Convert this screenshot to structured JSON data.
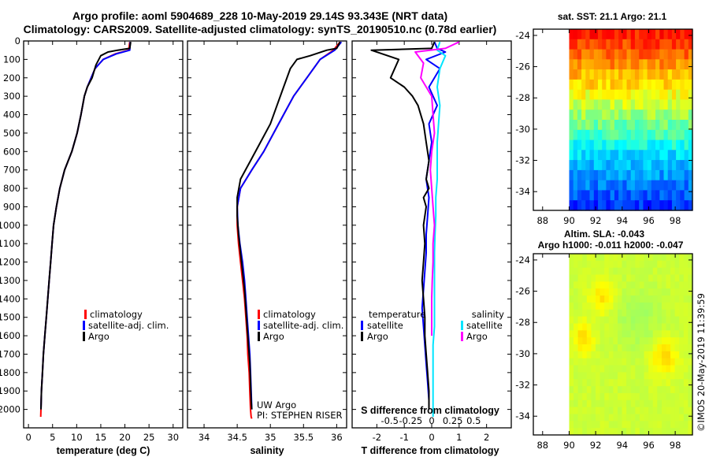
{
  "title": {
    "line1": "Argo profile: aoml 5904689_228 10-May-2019 29.14S 93.343E (NRT data)",
    "line2": "Climatology: CARS2009. Satellite-adjusted climatology: synTS_20190510.nc (0.78d earlier)"
  },
  "colors": {
    "climatology": "#ff0000",
    "satellite": "#0000ff",
    "argo": "#000000",
    "salinity_satellite": "#00e5ff",
    "salinity_argo": "#ff00ff"
  },
  "chart_data": [
    {
      "type": "line",
      "name": "temperature-profile",
      "xlabel": "temperature (deg C)",
      "ylabel": "",
      "xlim": [
        -1,
        32
      ],
      "ylim": [
        2100,
        0
      ],
      "xticks": [
        "0",
        "5",
        "10",
        "15",
        "20",
        "25",
        "30"
      ],
      "xtick_values": [
        0,
        5,
        10,
        15,
        20,
        25,
        30
      ],
      "yticks": [
        "0",
        "100",
        "200",
        "300",
        "400",
        "500",
        "600",
        "700",
        "800",
        "900",
        "1000",
        "1100",
        "1200",
        "1300",
        "1400",
        "1500",
        "1600",
        "1700",
        "1800",
        "1900",
        "2000"
      ],
      "ytick_values": [
        0,
        100,
        200,
        300,
        400,
        500,
        600,
        700,
        800,
        900,
        1000,
        1100,
        1200,
        1300,
        1400,
        1500,
        1600,
        1700,
        1800,
        1900,
        2000
      ],
      "legend": [
        "climatology",
        "satellite-adj. clim.",
        "Argo"
      ],
      "series": [
        {
          "name": "climatology",
          "color": "#ff0000",
          "x": [
            21.0,
            20.8,
            18.0,
            15.5,
            13.8,
            13.0,
            12.2,
            11.6,
            10.9,
            10.1,
            9.0,
            7.5,
            6.5,
            5.8,
            5.2,
            4.9,
            4.6,
            4.3,
            4.0,
            3.7,
            3.4,
            3.1,
            2.9,
            2.7,
            2.55
          ],
          "y": [
            5,
            50,
            70,
            100,
            150,
            200,
            250,
            300,
            400,
            500,
            600,
            700,
            800,
            900,
            1000,
            1100,
            1200,
            1300,
            1400,
            1500,
            1600,
            1700,
            1800,
            1900,
            2040
          ]
        },
        {
          "name": "satellite-adj. clim.",
          "color": "#0000ff",
          "x": [
            21.1,
            21.0,
            18.2,
            15.5,
            13.8,
            13.0,
            12.2,
            11.6,
            10.9,
            10.1,
            9.0,
            7.5,
            6.5,
            5.8,
            5.2,
            4.9,
            4.6,
            4.3,
            4.0,
            3.7,
            3.4,
            3.1,
            2.9,
            2.7,
            2.6
          ],
          "y": [
            5,
            50,
            70,
            100,
            150,
            200,
            250,
            300,
            400,
            500,
            600,
            700,
            800,
            900,
            1000,
            1100,
            1200,
            1300,
            1400,
            1500,
            1600,
            1700,
            1800,
            1900,
            2000
          ]
        },
        {
          "name": "Argo",
          "color": "#000000",
          "x": [
            21.2,
            21.0,
            19.8,
            18.5,
            16.5,
            15.0,
            14.0,
            13.2,
            12.2,
            11.6,
            10.9,
            10.1,
            9.0,
            7.5,
            6.5,
            5.8,
            5.2,
            4.9,
            4.6,
            4.3,
            4.0,
            3.7,
            3.4,
            3.1,
            2.9,
            2.7,
            2.6
          ],
          "y": [
            5,
            40,
            45,
            50,
            60,
            80,
            130,
            200,
            250,
            300,
            400,
            500,
            600,
            700,
            800,
            900,
            1000,
            1100,
            1200,
            1300,
            1400,
            1500,
            1600,
            1700,
            1800,
            1900,
            2000
          ]
        }
      ]
    },
    {
      "type": "line",
      "name": "salinity-profile",
      "xlabel": "salinity",
      "ylabel": "",
      "xlim": [
        33.75,
        36.15
      ],
      "ylim": [
        2100,
        0
      ],
      "xticks": [
        "34",
        "34.5",
        "35",
        "35.5",
        "36"
      ],
      "xtick_values": [
        34,
        34.5,
        35,
        35.5,
        36
      ],
      "legend": [
        "climatology",
        "satellite-adj. clim.",
        "Argo"
      ],
      "annotation": [
        "UW Argo",
        "PI: STEPHEN RISER"
      ],
      "series": [
        {
          "name": "climatology",
          "color": "#ff0000",
          "x": [
            36.05,
            35.95,
            35.75,
            35.55,
            35.35,
            35.2,
            35.05,
            34.9,
            34.72,
            34.55,
            34.5,
            34.5,
            34.52,
            34.55,
            34.58,
            34.61,
            34.63,
            34.65,
            34.66,
            34.68,
            34.69,
            34.7,
            34.71,
            34.72
          ],
          "y": [
            5,
            50,
            100,
            200,
            300,
            400,
            500,
            600,
            700,
            800,
            900,
            1000,
            1100,
            1200,
            1300,
            1400,
            1500,
            1600,
            1700,
            1800,
            1900,
            2000,
            2040,
            2050
          ]
        },
        {
          "name": "satellite-adj. clim.",
          "color": "#0000ff",
          "x": [
            36.07,
            35.97,
            35.75,
            35.55,
            35.35,
            35.2,
            35.05,
            34.9,
            34.72,
            34.55,
            34.5,
            34.51,
            34.54,
            34.58,
            34.61,
            34.63,
            34.65,
            34.67,
            34.69,
            34.7,
            34.71,
            34.72
          ],
          "y": [
            5,
            50,
            100,
            200,
            300,
            400,
            500,
            600,
            700,
            800,
            900,
            1000,
            1100,
            1200,
            1300,
            1400,
            1500,
            1600,
            1700,
            1800,
            1900,
            2000
          ]
        },
        {
          "name": "Argo",
          "color": "#000000",
          "x": [
            36.05,
            36.0,
            35.85,
            35.6,
            35.4,
            35.3,
            35.2,
            35.1,
            35.0,
            34.85,
            34.7,
            34.55,
            34.5,
            34.5,
            34.52,
            34.55,
            34.58,
            34.61,
            34.63,
            34.65,
            34.67,
            34.69,
            34.7,
            34.71,
            34.72
          ],
          "y": [
            5,
            40,
            50,
            80,
            100,
            150,
            250,
            350,
            450,
            550,
            650,
            750,
            850,
            950,
            1050,
            1150,
            1250,
            1350,
            1450,
            1550,
            1650,
            1750,
            1850,
            1950,
            2000
          ]
        }
      ]
    },
    {
      "type": "line",
      "name": "difference-profile",
      "xlabel": "T difference from climatology",
      "xlabel2": "S difference from climatology",
      "xlim": [
        -2.9,
        2.9
      ],
      "ylim": [
        2100,
        0
      ],
      "xticks": [
        "-2",
        "-1",
        "0",
        "1",
        "2"
      ],
      "xtick_values": [
        -2,
        -1,
        0,
        1,
        2
      ],
      "xticks2": [
        "-0.5",
        "-0.25",
        "0",
        "0.25",
        "0.5"
      ],
      "xtick2_values": [
        -0.5,
        -0.25,
        0,
        0.25,
        0.5
      ],
      "legend_temperature_title": "temperature",
      "legend_salinity_title": "salinity",
      "legend_temperature": [
        "satellite",
        "Argo"
      ],
      "legend_salinity": [
        "satellite",
        "Argo"
      ],
      "series": [
        {
          "name": "T satellite",
          "color": "#0000ff",
          "x": [
            0.1,
            0.2,
            0.5,
            -0.2,
            0.3,
            -0.1,
            0.2,
            -0.1,
            0.0,
            -0.1,
            -0.2,
            -0.1,
            -0.15,
            -0.2,
            -0.2,
            -0.25,
            -0.3,
            -0.35,
            -0.3,
            -0.25,
            -0.2,
            -0.15,
            -0.1,
            -0.1
          ],
          "y": [
            5,
            40,
            60,
            100,
            150,
            250,
            350,
            450,
            550,
            650,
            750,
            850,
            950,
            1050,
            1150,
            1250,
            1350,
            1450,
            1550,
            1650,
            1750,
            1850,
            1950,
            2000
          ]
        },
        {
          "name": "T Argo",
          "color": "#000000",
          "x": [
            0.1,
            0.0,
            -2.2,
            -1.2,
            -1.5,
            -1.0,
            -0.7,
            -0.5,
            -0.3,
            -0.2,
            -0.1,
            -0.2,
            -0.1,
            -0.3,
            -0.2,
            -0.3,
            -0.25,
            -0.3,
            -0.35,
            -0.3,
            -0.25,
            -0.25,
            -0.2,
            -0.15,
            -0.1,
            -0.1
          ],
          "y": [
            5,
            40,
            50,
            100,
            200,
            250,
            300,
            350,
            450,
            550,
            650,
            750,
            800,
            850,
            900,
            1000,
            1100,
            1200,
            1300,
            1400,
            1500,
            1600,
            1700,
            1800,
            1900,
            2000
          ]
        },
        {
          "name": "S satellite",
          "color": "#00e5ff",
          "x": [
            0.3,
            0.2,
            0.5,
            0.3,
            0.2,
            0.3,
            0.25,
            0.2,
            0.2,
            0.2,
            0.15,
            0.15,
            0.12,
            0.1,
            0.1,
            0.1,
            0.1,
            0.1,
            0.05,
            0.05,
            0.05,
            0.05,
            0.05,
            0.05
          ],
          "y": [
            5,
            50,
            80,
            150,
            250,
            350,
            450,
            550,
            650,
            750,
            850,
            950,
            1050,
            1150,
            1250,
            1350,
            1450,
            1550,
            1650,
            1750,
            1850,
            1950,
            2000,
            2040
          ]
        },
        {
          "name": "S Argo",
          "color": "#ff00ff",
          "x": [
            1.0,
            0.5,
            -0.6,
            -0.3,
            -0.4,
            0.0,
            0.05,
            0.1,
            0.0,
            -0.05,
            0.0,
            0.05,
            0.1,
            0.05,
            0.05,
            0.02,
            0.0,
            0.0,
            0.0
          ],
          "y": [
            5,
            40,
            60,
            120,
            200,
            300,
            400,
            500,
            600,
            700,
            800,
            900,
            1000,
            1100,
            1200,
            1300,
            1400,
            1500,
            1600
          ]
        }
      ]
    },
    {
      "type": "heatmap",
      "name": "sst-map",
      "title": "sat. SST: 21.1 Argo: 21.1",
      "xticks": [
        "88",
        "90",
        "92",
        "94",
        "96",
        "98"
      ],
      "xtick_values": [
        88,
        90,
        92,
        94,
        96,
        98
      ],
      "yticks": [
        "-24",
        "-26",
        "-28",
        "-30",
        "-32",
        "-34"
      ],
      "ytick_values": [
        -24,
        -26,
        -28,
        -30,
        -32,
        -34
      ],
      "xlim": [
        87.3,
        99.3
      ],
      "ylim": [
        -35.2,
        -23.6
      ],
      "data_xlim": [
        90,
        99.3
      ],
      "data_ylim": [
        -35.2,
        -23.6
      ],
      "value_rows": [
        23.5,
        23.2,
        22.9,
        22.6,
        22.2,
        21.9,
        21.5,
        21.2,
        20.8,
        20.4,
        20.0,
        19.6,
        19.2,
        18.9,
        18.6,
        18.3,
        18.0,
        17.7
      ]
    },
    {
      "type": "heatmap",
      "name": "sla-map",
      "title": "Altim. SLA: -0.043",
      "title2": "Argo h1000: -0.011 h2000: -0.047",
      "xticks": [
        "88",
        "90",
        "92",
        "94",
        "96",
        "98"
      ],
      "xtick_values": [
        88,
        90,
        92,
        94,
        96,
        98
      ],
      "yticks": [
        "-24",
        "-26",
        "-28",
        "-30",
        "-32",
        "-34"
      ],
      "ytick_values": [
        -24,
        -26,
        -28,
        -30,
        -32,
        -34
      ],
      "xlim": [
        87.3,
        99.3
      ],
      "ylim": [
        -35.2,
        -23.6
      ],
      "data_xlim": [
        90,
        99.3
      ],
      "data_ylim": [
        -35.2,
        -23.6
      ]
    }
  ],
  "footer": "©IMOS 20-May-2019 11:39:59"
}
